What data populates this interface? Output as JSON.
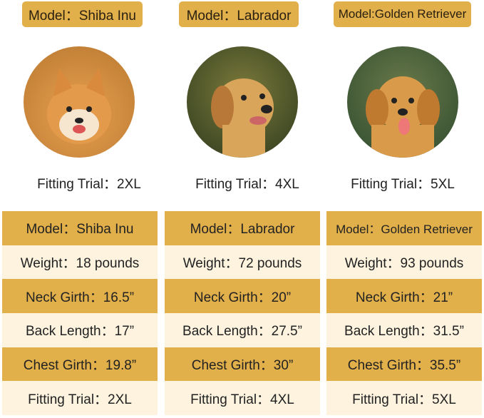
{
  "colors": {
    "gold": "#e2b04a",
    "cream": "#fdf3df"
  },
  "dogs": [
    {
      "model_tag": "Model：Shiba Inu",
      "fitting": "Fitting Trial：2XL",
      "fur": "#d98a3c",
      "bg": "#c98a4a",
      "rows": [
        "Model：Shiba Inu",
        "Weight：18 pounds",
        "Neck Girth：16.5”",
        "Back Length：17”",
        "Chest Girth：19.8”",
        "Fitting Trial：2XL"
      ]
    },
    {
      "model_tag": "Model：Labrador",
      "fitting": "Fitting Trial：4XL",
      "fur": "#d9a55a",
      "bg": "#4a5a2a",
      "rows": [
        "Model：Labrador",
        "Weight：72 pounds",
        "Neck Girth：20”",
        "Back Length：27.5”",
        "Chest Girth：30”",
        "Fitting Trial：4XL"
      ]
    },
    {
      "model_tag": "Model:Golden Retriever",
      "fitting": "Fitting Trial：5XL",
      "fur": "#d99a4a",
      "bg": "#3e5a3a",
      "rows": [
        "Model：Golden Retriever",
        "Weight：93 pounds",
        "Neck Girth：21”",
        "Back Length：31.5”",
        "Chest Girth：35.5”",
        "Fitting Trial：5XL"
      ]
    }
  ]
}
